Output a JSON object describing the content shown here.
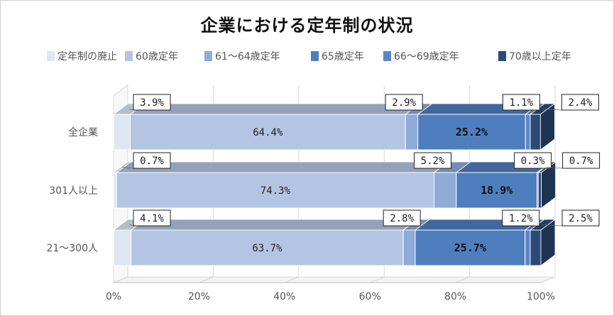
{
  "chart_data": {
    "type": "bar",
    "orientation": "horizontal",
    "stacked": "percent",
    "title": "企業における定年制の状況",
    "categories": [
      "全企業",
      "301人以上",
      "21～300人"
    ],
    "series": [
      {
        "name": "定年制の廃止",
        "values": [
          3.9,
          0.7,
          4.1
        ],
        "color": "#dfe6f1"
      },
      {
        "name": "60歳定年",
        "values": [
          64.4,
          74.3,
          63.7
        ],
        "color": "#b3c5e3"
      },
      {
        "name": "61～64歳定年",
        "values": [
          2.9,
          5.2,
          2.8
        ],
        "color": "#8fabd8"
      },
      {
        "name": "65歳定年",
        "values": [
          25.2,
          18.9,
          25.7
        ],
        "color": "#4f7ebf"
      },
      {
        "name": "66～69歳定年",
        "values": [
          1.1,
          0.3,
          1.2
        ],
        "color": "#5a86c6"
      },
      {
        "name": "70歳以上定年",
        "values": [
          2.4,
          0.7,
          2.5
        ],
        "color": "#2c4a77"
      }
    ],
    "value_labels": [
      [
        "3.9%",
        "64.4%",
        "2.9%",
        "25.2%",
        "1.1%",
        "2.4%"
      ],
      [
        "0.7%",
        "74.3%",
        "5.2%",
        "18.9%",
        "0.3%",
        "0.7%"
      ],
      [
        "4.1%",
        "63.7%",
        "2.8%",
        "25.7%",
        "1.2%",
        "2.5%"
      ]
    ],
    "xlim": [
      0,
      100
    ],
    "xticks": [
      "0%",
      "20%",
      "40%",
      "60%",
      "80%",
      "100%"
    ],
    "legend_position": "top",
    "grid": true,
    "style": "3d-stacked"
  }
}
